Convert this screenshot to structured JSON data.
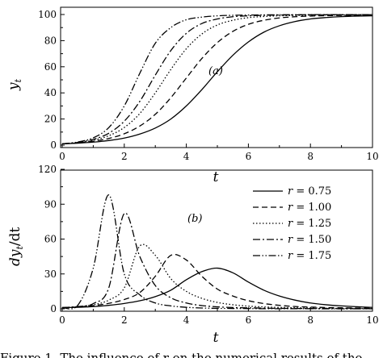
{
  "chart_data": [
    {
      "type": "line",
      "panel_label": "(a)",
      "xlabel": "t",
      "ylabel": "y",
      "ylabel_sub": "t",
      "xlim": [
        0,
        10
      ],
      "ylim": [
        0,
        100
      ],
      "xticks": [
        0,
        2,
        4,
        6,
        8,
        10
      ],
      "yticks": [
        0,
        20,
        40,
        60,
        80,
        100
      ],
      "x": [
        0,
        0.5,
        1,
        1.5,
        2,
        2.5,
        3,
        3.5,
        4,
        4.5,
        5,
        5.5,
        6,
        6.5,
        7,
        7.5,
        8,
        8.5,
        9,
        9.5,
        10
      ],
      "series": [
        {
          "name": "r = 0.75",
          "style": "solid",
          "values": [
            1.0,
            1.5,
            2.3,
            3.5,
            5.4,
            8.5,
            13.1,
            20.0,
            30.0,
            42.5,
            56.2,
            68.8,
            79.0,
            86.5,
            91.4,
            94.6,
            96.6,
            97.7,
            98.4,
            98.8,
            99.0
          ]
        },
        {
          "name": "r = 1.00",
          "style": "dashed",
          "values": [
            1.0,
            1.7,
            3.0,
            5.1,
            8.7,
            14.6,
            23.6,
            36.3,
            51.4,
            66.3,
            78.5,
            87.1,
            92.5,
            95.6,
            97.4,
            98.3,
            98.8,
            99.1,
            99.3,
            99.4,
            99.5
          ]
        },
        {
          "name": "r = 1.25",
          "style": "dotted",
          "values": [
            1.0,
            1.9,
            3.7,
            7.2,
            13.5,
            24.2,
            40.0,
            57.9,
            73.8,
            85.1,
            92.0,
            95.6,
            97.6,
            98.5,
            99.0,
            99.3,
            99.5,
            99.6,
            99.6,
            99.7,
            99.7
          ]
        },
        {
          "name": "r = 1.50",
          "style": "dashdot",
          "values": [
            1.0,
            2.1,
            4.4,
            9.1,
            18.3,
            33.5,
            53.6,
            72.4,
            85.6,
            93.1,
            96.6,
            98.3,
            99.0,
            99.4,
            99.6,
            99.7,
            99.8,
            99.8,
            99.8,
            99.8,
            99.8
          ]
        },
        {
          "name": "r = 1.75",
          "style": "dashdotdot",
          "values": [
            1.0,
            2.4,
            5.6,
            13.4,
            30.0,
            55.0,
            78.0,
            90.0,
            96.0,
            98.0,
            99.0,
            99.4,
            99.6,
            99.7,
            99.8,
            99.8,
            99.9,
            99.9,
            99.9,
            99.9,
            99.9
          ]
        }
      ]
    },
    {
      "type": "line",
      "panel_label": "(b)",
      "xlabel": "t",
      "ylabel": "dy",
      "ylabel_sub": "t",
      "ylabel_tail": "/dt",
      "xlim": [
        0,
        10
      ],
      "ylim": [
        0,
        120
      ],
      "xticks": [
        0,
        2,
        4,
        6,
        8,
        10
      ],
      "yticks": [
        0,
        30,
        60,
        90,
        120
      ],
      "x": [
        0,
        0.5,
        1,
        1.5,
        2,
        2.5,
        3,
        3.5,
        4,
        4.5,
        5,
        5.5,
        6,
        6.5,
        7,
        7.5,
        8,
        8.5,
        9,
        9.5,
        10
      ],
      "series": [
        {
          "name": "r = 0.75",
          "style": "solid",
          "values": [
            1.0,
            1.3,
            1.9,
            3.0,
            4.6,
            6.9,
            10.5,
            16.0,
            25.0,
            32.0,
            35.0,
            31.0,
            23.0,
            16.0,
            11.0,
            7.5,
            5.0,
            3.5,
            2.5,
            1.8,
            1.2
          ]
        },
        {
          "name": "r = 1.00",
          "style": "dashed",
          "values": [
            1.0,
            1.6,
            2.8,
            4.7,
            8.0,
            14.0,
            28.0,
            46.0,
            42.0,
            28.0,
            17.0,
            11.0,
            7.0,
            4.5,
            3.0,
            2.0,
            1.5,
            1.1,
            0.9,
            0.7,
            0.5
          ]
        },
        {
          "name": "r = 1.25",
          "style": "dotted",
          "values": [
            1.0,
            1.8,
            3.5,
            7.5,
            18.0,
            54.0,
            46.0,
            26.0,
            15.0,
            9.0,
            5.5,
            3.5,
            2.3,
            1.6,
            1.2,
            0.9,
            0.7,
            0.5,
            0.4,
            0.3,
            0.2
          ]
        },
        {
          "name": "r = 1.50",
          "style": "dashdot",
          "values": [
            1.0,
            2.0,
            4.5,
            18.0,
            82.0,
            45.0,
            20.0,
            9.5,
            5.0,
            2.8,
            1.7,
            1.1,
            0.8,
            0.6,
            0.4,
            0.3,
            0.2,
            0.2,
            0.1,
            0.1,
            0.1
          ]
        },
        {
          "name": "r = 1.75",
          "style": "dashdotdot",
          "values": [
            1.0,
            3.0,
            35.0,
            98.0,
            30.0,
            12.0,
            5.0,
            2.5,
            1.3,
            0.7,
            0.4,
            0.3,
            0.2,
            0.1,
            0.1,
            0.1,
            0.1,
            0.0,
            0.0,
            0.0,
            0.0
          ]
        }
      ]
    }
  ],
  "legend": {
    "placement": "upper-right of panel (b)",
    "var": "r",
    "entries": [
      "= 0.75",
      "= 1.00",
      "= 1.25",
      "= 1.50",
      "= 1.75"
    ]
  },
  "caption_fragment": "Figure 1. The influence of r on the numerical results of the"
}
